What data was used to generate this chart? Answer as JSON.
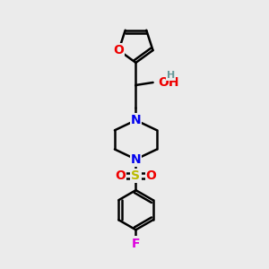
{
  "background_color": "#ebebeb",
  "atom_colors": {
    "C": "#000000",
    "N": "#0000ee",
    "O": "#ee0000",
    "S": "#bbbb00",
    "F": "#dd00dd",
    "H": "#669999"
  },
  "bond_color": "#000000",
  "bond_width": 1.8,
  "font_size_atoms": 10,
  "font_size_H": 8,
  "figsize": [
    3.0,
    3.0
  ],
  "dpi": 100
}
